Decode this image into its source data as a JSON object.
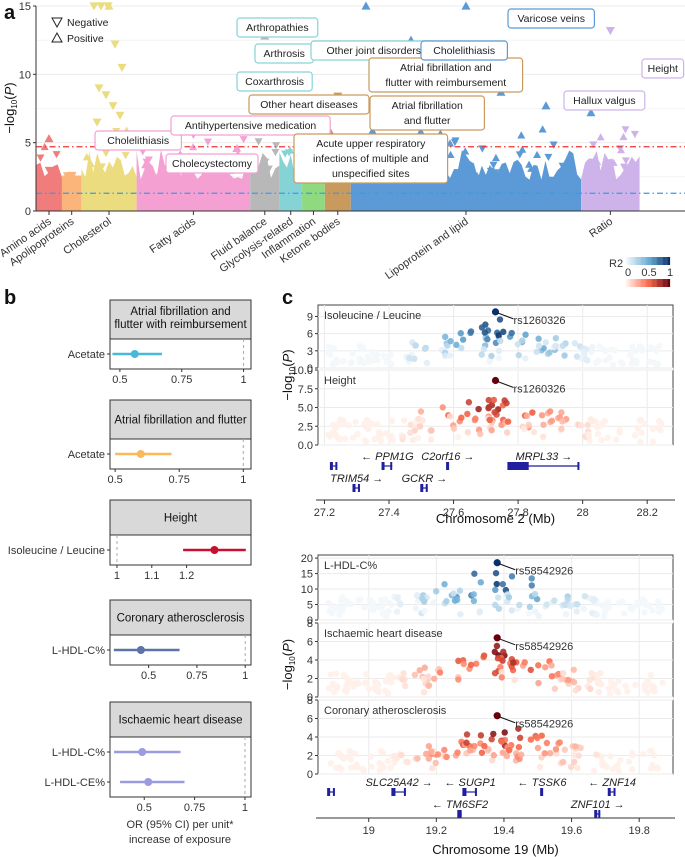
{
  "figure": {
    "panel_letters": [
      "a",
      "b",
      "c"
    ]
  },
  "chart_data": [
    {
      "panel": "a",
      "type": "scatter",
      "subtype": "manhattan (PheWAS)",
      "ylabel": "-log10(P)",
      "ylim": [
        0,
        15
      ],
      "yticks": [
        0,
        5,
        10,
        15
      ],
      "grid": true,
      "legend": {
        "placement": "top-left",
        "entries": [
          {
            "symbol": "down-triangle",
            "label": "Negative"
          },
          {
            "symbol": "up-triangle",
            "label": "Positive"
          }
        ]
      },
      "threshold_lines": [
        {
          "name": "bonferroni",
          "value": 4.7,
          "color": "#ee3333",
          "style": "dash-dot"
        },
        {
          "name": "nominal",
          "value": 1.3,
          "color": "#3b9ae8",
          "style": "dash-dot"
        }
      ],
      "categories": [
        {
          "name": "Amino acids",
          "color": "#f07c7c",
          "span": 0.04,
          "peak": 5.3
        },
        {
          "name": "Apolipoproteins",
          "color": "#fbb57a",
          "span": 0.03,
          "peak": 2.6
        },
        {
          "name": "Cholesterol",
          "color": "#ecdc80",
          "span": 0.085,
          "peak": 15
        },
        {
          "name": "Fatty acids",
          "color": "#f4a0d2",
          "span": 0.175,
          "peak": 5.6
        },
        {
          "name": "Fluid balance",
          "color": "#b8b8b8",
          "span": 0.045,
          "peak": 12.8
        },
        {
          "name": "Glycolysis-related",
          "color": "#86d3d6",
          "span": 0.035,
          "peak": 13
        },
        {
          "name": "Inflammation",
          "color": "#8fda80",
          "span": 0.035,
          "peak": 2.4
        },
        {
          "name": "Ketone bodies",
          "color": "#c99a5e",
          "span": 0.04,
          "peak": 8.4
        },
        {
          "name": "Lipoprotein and lipid",
          "color": "#5b9ad6",
          "span": 0.355,
          "peak": 15
        },
        {
          "name": "Ratio",
          "color": "#cdb3ea",
          "span": 0.09,
          "peak": 13.2
        }
      ],
      "annotations": [
        {
          "text": "Cholelithiasis",
          "category": "Cholesterol",
          "y": 4.9
        },
        {
          "text": "Antihypertensive medication",
          "category": "Fatty acids",
          "y": 5.7
        },
        {
          "text": "Cholecystectomy",
          "category": "Fatty acids",
          "y": 3.2
        },
        {
          "text": "Arthropathies",
          "category": "Glycolysis-related",
          "y": 13.2
        },
        {
          "text": "Arthrosis",
          "category": "Glycolysis-related",
          "y": 11.5
        },
        {
          "text": "Coxarthrosis",
          "category": "Glycolysis-related",
          "y": 9.8
        },
        {
          "text": "Other joint disorders",
          "category": "Glycolysis-related",
          "y": 11.8
        },
        {
          "text": "Other heart diseases",
          "category": "Ketone bodies",
          "y": 8.5
        },
        {
          "text": "Acute upper respiratory infections of multiple and unspecified sites",
          "category": "Ketone bodies",
          "y": 6.3
        },
        {
          "text": "Atrial fibrillation and flutter with reimbursement",
          "category": "Ketone bodies",
          "y": 10.3
        },
        {
          "text": "Atrial fibrillation and flutter",
          "category": "Ketone bodies",
          "y": 7.3
        },
        {
          "text": "Cholelithiasis",
          "category": "Lipoprotein and lipid",
          "y": 11.8
        },
        {
          "text": "Varicose veins",
          "category": "Lipoprotein and lipid",
          "y": 15
        },
        {
          "text": "Hallux valgus",
          "category": "Lipoprotein and lipid",
          "y": 8.2
        },
        {
          "text": "Height",
          "category": "Ratio",
          "y": 9.6
        }
      ]
    },
    {
      "panel": "b",
      "type": "forest",
      "xlabel": "OR (95% CI) per unit* increase of exposure",
      "subplots": [
        {
          "title": "Atrial fibrillation and flutter with reimbursement",
          "color": "#4ab8d8",
          "xlim": [
            0.46,
            1.03
          ],
          "xticks": [
            0.5,
            0.75,
            1
          ],
          "rows": [
            {
              "label": "Acetate",
              "or": 0.56,
              "lo": 0.47,
              "hi": 0.67
            }
          ]
        },
        {
          "title": "Atrial fibrillation and flutter",
          "color": "#fbb95a",
          "xlim": [
            0.48,
            1.03
          ],
          "xticks": [
            0.5,
            0.75,
            1
          ],
          "rows": [
            {
              "label": "Acetate",
              "or": 0.6,
              "lo": 0.5,
              "hi": 0.72
            }
          ]
        },
        {
          "title": "Height",
          "color": "#c8102e",
          "xlim": [
            0.98,
            1.385
          ],
          "xticks": [
            1,
            1.1,
            1.2
          ],
          "rows": [
            {
              "label": "Isoleucine / Leucine",
              "or": 1.28,
              "lo": 1.19,
              "hi": 1.37
            }
          ]
        },
        {
          "title": "Coronary atherosclerosis",
          "color": "#5b73a8",
          "xlim": [
            0.3,
            1.03
          ],
          "xticks": [
            0.5,
            0.75,
            1
          ],
          "rows": [
            {
              "label": "L-HDL-C%",
              "or": 0.46,
              "lo": 0.32,
              "hi": 0.66
            }
          ]
        },
        {
          "title": "Ischaemic heart disease",
          "color": "#9b9be0",
          "xlim": [
            0.33,
            1.03
          ],
          "xticks": [
            0.5,
            0.75,
            1
          ],
          "rows": [
            {
              "label": "L-HDL-C%",
              "or": 0.49,
              "lo": 0.35,
              "hi": 0.68
            },
            {
              "label": "L-HDL-CE%",
              "or": 0.52,
              "lo": 0.38,
              "hi": 0.7
            }
          ]
        }
      ]
    },
    {
      "panel": "c",
      "type": "scatter",
      "subtype": "regional association",
      "legend": {
        "title": "R2",
        "placement": "top-right",
        "ticks": [
          "0",
          "0.5",
          "1"
        ],
        "scales": [
          "blue",
          "red"
        ]
      },
      "ylabel": "-log10(P)",
      "regions": [
        {
          "xlabel": "Chromosome 2 (Mb)",
          "xlim": [
            27.18,
            28.28
          ],
          "xticks": [
            27.2,
            27.4,
            27.6,
            27.8,
            28,
            28.2
          ],
          "tracks": [
            {
              "title": "Isoleucine / Leucine",
              "scale": "blue",
              "ylim": [
                0,
                11
              ],
              "yticks": [
                0,
                3,
                6,
                9
              ],
              "lead_snp": "rs1260326",
              "lead": {
                "x": 27.73,
                "y": 9.8
              }
            },
            {
              "title": "Height",
              "scale": "red",
              "ylim": [
                0,
                10
              ],
              "yticks": [
                "0.0",
                "2.5",
                "5.0",
                "7.5",
                "10.0"
              ],
              "lead_snp": "rs1260326",
              "lead": {
                "x": 27.73,
                "y": 8.6
              }
            }
          ],
          "genes": [
            {
              "name": "PPM1G",
              "dir": "left",
              "start": 27.38,
              "end": 27.41,
              "row": 0
            },
            {
              "name": "C2orf16",
              "dir": "right",
              "start": 27.58,
              "end": 27.585,
              "row": 0
            },
            {
              "name": "MRPL33",
              "dir": "right",
              "start": 27.77,
              "end": 27.99,
              "row": 0
            },
            {
              "name": "TRIM54",
              "dir": "right",
              "start": 27.29,
              "end": 27.31,
              "row": 1
            },
            {
              "name": "GCKR",
              "dir": "right",
              "start": 27.5,
              "end": 27.52,
              "row": 1
            },
            {
              "name": "",
              "dir": "none",
              "start": 27.22,
              "end": 27.24,
              "row": 0
            }
          ]
        },
        {
          "xlabel": "Chromosome 19 (Mb)",
          "xlim": [
            18.85,
            19.9
          ],
          "xticks": [
            19,
            19.2,
            19.4,
            19.6,
            19.8
          ],
          "tracks": [
            {
              "title": "L-HDL-C%",
              "scale": "blue",
              "ylim": [
                0,
                21
              ],
              "yticks": [
                0,
                5,
                10,
                15,
                20
              ],
              "lead_snp": "rs58542926",
              "lead": {
                "x": 19.38,
                "y": 18.5
              }
            },
            {
              "title": "Ischaemic heart disease",
              "scale": "red",
              "ylim": [
                0,
                8
              ],
              "yticks": [
                0,
                2,
                4,
                6,
                8
              ],
              "lead_snp": "rs58542926",
              "lead": {
                "x": 19.38,
                "y": 6.4
              }
            },
            {
              "title": "Coronary atherosclerosis",
              "scale": "red",
              "ylim": [
                0,
                8
              ],
              "yticks": [
                0,
                2,
                4,
                6,
                8
              ],
              "lead_snp": "rs58542926",
              "lead": {
                "x": 19.38,
                "y": 6.3
              }
            }
          ],
          "genes": [
            {
              "name": "SLC25A42",
              "dir": "right",
              "start": 19.07,
              "end": 19.11,
              "row": 0
            },
            {
              "name": "SUGP1",
              "dir": "left",
              "start": 19.28,
              "end": 19.32,
              "row": 0
            },
            {
              "name": "TSSK6",
              "dir": "left",
              "start": 19.51,
              "end": 19.515,
              "row": 0
            },
            {
              "name": "ZNF14",
              "dir": "left",
              "start": 19.71,
              "end": 19.73,
              "row": 0
            },
            {
              "name": "TM6SF2",
              "dir": "left",
              "start": 19.265,
              "end": 19.275,
              "row": 1
            },
            {
              "name": "ZNF101",
              "dir": "right",
              "start": 19.67,
              "end": 19.685,
              "row": 1
            },
            {
              "name": "",
              "dir": "none",
              "start": 18.88,
              "end": 18.9,
              "row": 0
            }
          ]
        }
      ]
    }
  ]
}
